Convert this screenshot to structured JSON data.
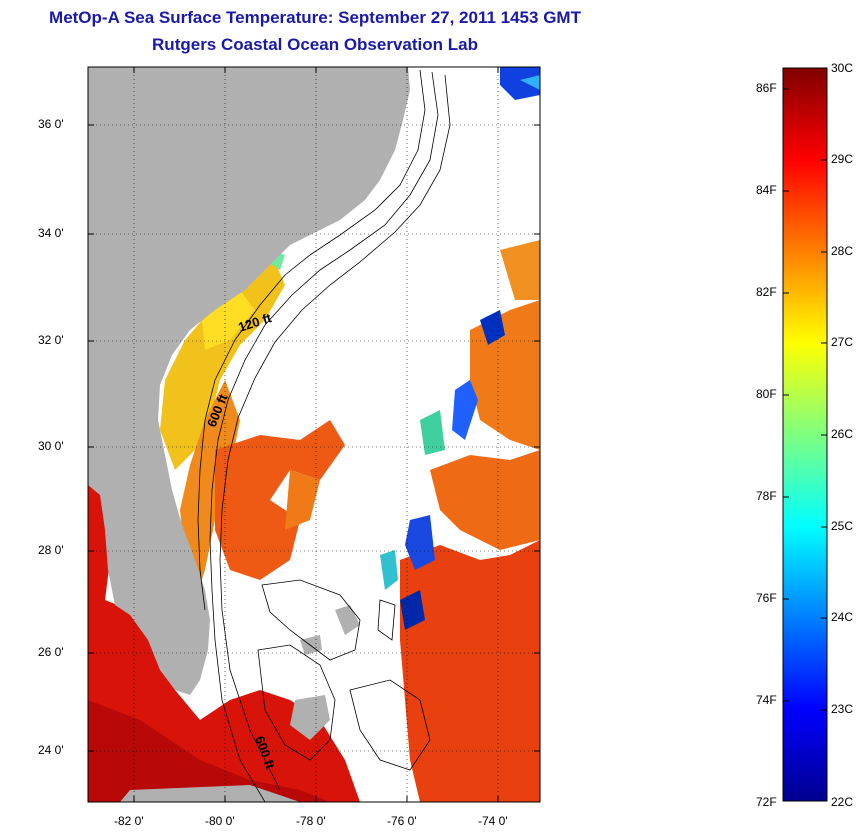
{
  "header": {
    "title": "MetOp-A Sea Surface Temperature:  September 27, 2011 1453 GMT",
    "subtitle": "Rutgers Coastal Ocean Observation Lab"
  },
  "axes": {
    "lat_labels": [
      "36 0'",
      "34 0'",
      "32 0'",
      "30 0'",
      "28 0'",
      "26 0'",
      "24 0'"
    ],
    "lon_labels": [
      "-82 0'",
      "-80 0'",
      "-78 0'",
      "-76 0'",
      "-74 0'"
    ]
  },
  "contours": {
    "label_120": "120 ft",
    "label_600a": "600 ft",
    "label_600b": "600 ft"
  },
  "colorbar": {
    "f_labels": [
      "86F",
      "84F",
      "82F",
      "80F",
      "78F",
      "76F",
      "74F",
      "72F"
    ],
    "c_labels": [
      "30C",
      "29C",
      "28C",
      "27C",
      "26C",
      "25C",
      "24C",
      "23C",
      "22C"
    ]
  },
  "colors": {
    "land": "#b0b0b0",
    "title": "#1a1aa8"
  }
}
